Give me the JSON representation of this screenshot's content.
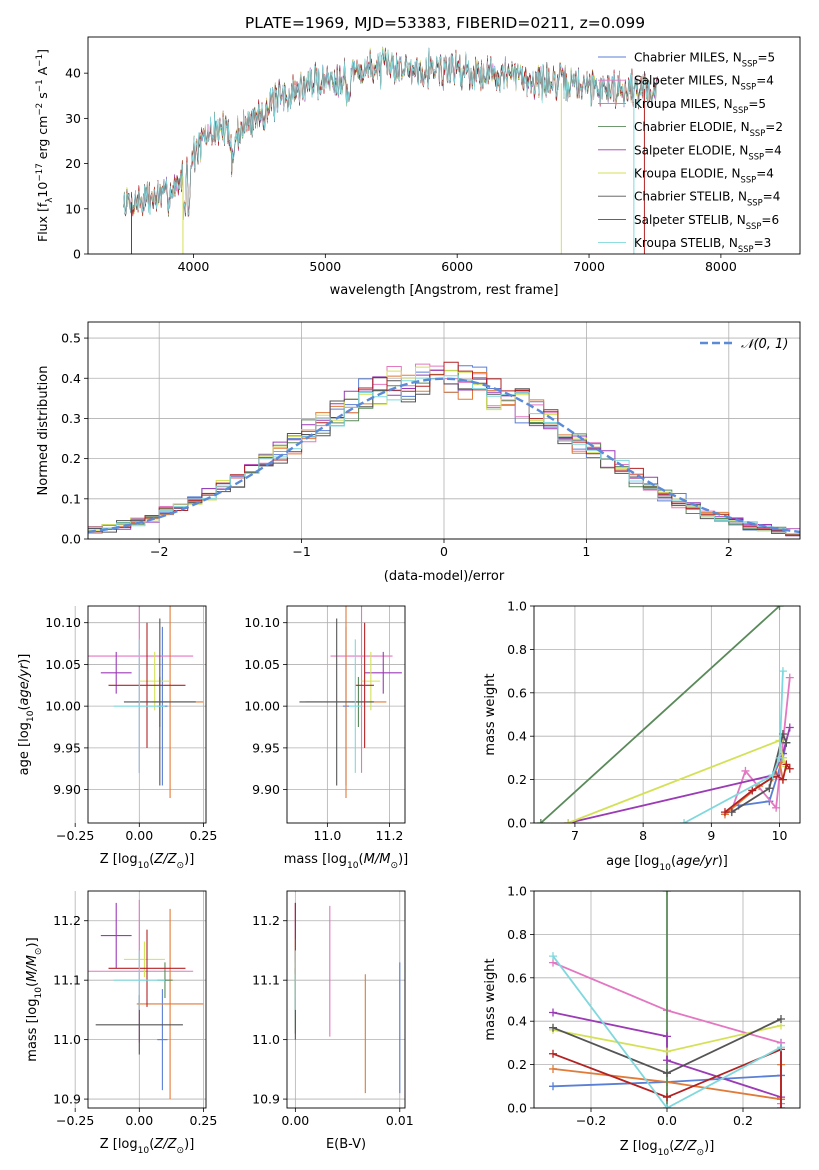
{
  "figure": {
    "title": "PLATE=1969, MJD=53383, FIBERID=0211, z=0.099"
  },
  "colors": {
    "model_palette": [
      "#5a7fd6",
      "#e377c2",
      "#e07b39",
      "#5a8a5a",
      "#9b3bb5",
      "#d4e157",
      "#555555",
      "#b22222",
      "#7fd8dd"
    ],
    "gaussian": "#5b8bd8",
    "grid": "#b0b0b0"
  },
  "chart_data": [
    {
      "id": "spectrum",
      "type": "line",
      "xlabel": "wavelength [Angstrom, rest frame]",
      "ylabel_main": "Flux [f",
      "ylabel_sub": "λ",
      "ylabel_rest": "10",
      "ylabel_sup1": "−17",
      "ylabel_tail": " erg cm",
      "ylabel_sup2": "−2",
      "ylabel_tail2": " s",
      "ylabel_sup3": "−1",
      "ylabel_tail3": " A",
      "ylabel_sup4": "−1",
      "ylabel_end": "]",
      "xlim": [
        3200,
        8600
      ],
      "ylim": [
        0,
        48
      ],
      "xticks": [
        "4000",
        "5000",
        "6000",
        "7000",
        "8000"
      ],
      "yticks": [
        "0",
        "10",
        "20",
        "30",
        "40"
      ],
      "continuum": {
        "x": [
          3470,
          3600,
          3800,
          3900,
          4000,
          4100,
          4200,
          4300,
          4500,
          4700,
          4900,
          5100,
          5300,
          5500,
          5700,
          5900,
          6100,
          6300,
          6500,
          6700,
          6900,
          7100,
          7300,
          7500
        ],
        "y": [
          11,
          12,
          13,
          16,
          22,
          26,
          28,
          26,
          31,
          35,
          38,
          39,
          41,
          41.5,
          41,
          41.5,
          40.5,
          40,
          39,
          38,
          37.5,
          37,
          36.5,
          36.5
        ]
      },
      "legend": [
        {
          "name": "Chabrier MILES",
          "n": "5"
        },
        {
          "name": "Salpeter MILES",
          "n": "4"
        },
        {
          "name": "Kroupa MILES",
          "n": "5"
        },
        {
          "name": "Chabrier ELODIE",
          "n": "2"
        },
        {
          "name": "Salpeter ELODIE",
          "n": "4"
        },
        {
          "name": "Kroupa ELODIE",
          "n": "4"
        },
        {
          "name": "Chabrier STELIB",
          "n": "4"
        },
        {
          "name": "Salpeter STELIB",
          "n": "6"
        },
        {
          "name": "Kroupa STELIB",
          "n": "3"
        }
      ],
      "legend_n_label": "N",
      "legend_n_sub": "SSP",
      "legend_placement": "right"
    },
    {
      "id": "residuals",
      "type": "histogram",
      "xlabel": "(data-model)/error",
      "ylabel": "Normed distribution",
      "xlim": [
        -2.5,
        2.5
      ],
      "ylim": [
        0,
        0.54
      ],
      "xticks": [
        "−2",
        "−1",
        "0",
        "1",
        "2"
      ],
      "yticks": [
        "0.0",
        "0.1",
        "0.2",
        "0.3",
        "0.4",
        "0.5"
      ],
      "bin_width": 0.1,
      "grid": true,
      "legend": "𝒩(0, 1)",
      "legend_placement": "top-right"
    },
    {
      "id": "age_vs_Z",
      "type": "errorbar",
      "xlabel": "Z [log",
      "xlabel_sub": "10",
      "xlabel_rest": "(Z/Z",
      "xlabel_sub2": "⊙",
      "xlabel_end": ")]",
      "ylabel": "age  [log",
      "ylabel_sub": "10",
      "ylabel_rest": "(age/yr)]",
      "xlim": [
        -0.2,
        0.26
      ],
      "ylim": [
        9.86,
        10.12
      ],
      "xticks": [
        "−0.25",
        "0.00",
        "0.25"
      ],
      "yticks": [
        "9.90",
        "9.95",
        "10.00",
        "10.05",
        "10.10"
      ],
      "points": [
        {
          "x": 0.09,
          "y": 10.0,
          "xerr": 0.02,
          "yerr": 0.095
        },
        {
          "x": 0.0,
          "y": 10.06,
          "xerr": 0.21,
          "yerr": 0.14
        },
        {
          "x": 0.12,
          "y": 10.005,
          "xerr": 0.13,
          "yerr": 0.115
        },
        {
          "x": 0.08,
          "y": 10.005,
          "xerr": 0.03,
          "yerr": 0.03
        },
        {
          "x": -0.09,
          "y": 10.04,
          "xerr": 0.06,
          "yerr": 0.025
        },
        {
          "x": 0.06,
          "y": 10.03,
          "xerr": 0.06,
          "yerr": 0.035
        },
        {
          "x": 0.08,
          "y": 10.005,
          "xerr": 0.14,
          "yerr": 0.1
        },
        {
          "x": 0.03,
          "y": 10.025,
          "xerr": 0.15,
          "yerr": 0.075
        },
        {
          "x": 0.0,
          "y": 10.0,
          "xerr": 0.1,
          "yerr": 0.08
        }
      ]
    },
    {
      "id": "age_vs_mass",
      "type": "errorbar",
      "xlabel": "mass [log",
      "xlabel_sub": "10",
      "xlabel_rest": "(M/M",
      "xlabel_sub2": "⊙",
      "xlabel_end": ")]",
      "xlim": [
        10.87,
        11.25
      ],
      "ylim": [
        9.86,
        10.12
      ],
      "xticks": [
        "11.0",
        "11.2"
      ],
      "yticks": [
        "9.90",
        "9.95",
        "10.00",
        "10.05",
        "10.10"
      ],
      "points": [
        {
          "x": 11.06,
          "y": 10.0,
          "xerr": 0.01,
          "yerr": 0.095
        },
        {
          "x": 11.11,
          "y": 10.06,
          "xerr": 0.1,
          "yerr": 0.14
        },
        {
          "x": 11.06,
          "y": 10.005,
          "xerr": 0.13,
          "yerr": 0.115
        },
        {
          "x": 11.1,
          "y": 10.005,
          "xerr": 0.02,
          "yerr": 0.03
        },
        {
          "x": 11.18,
          "y": 10.04,
          "xerr": 0.06,
          "yerr": 0.025
        },
        {
          "x": 11.14,
          "y": 10.03,
          "xerr": 0.03,
          "yerr": 0.035
        },
        {
          "x": 11.03,
          "y": 10.005,
          "xerr": 0.12,
          "yerr": 0.1
        },
        {
          "x": 11.12,
          "y": 10.025,
          "xerr": 0.03,
          "yerr": 0.075
        },
        {
          "x": 11.09,
          "y": 10.0,
          "xerr": 0.02,
          "yerr": 0.08
        }
      ]
    },
    {
      "id": "weight_vs_age",
      "type": "line",
      "xlabel": "age  [log",
      "xlabel_sub": "10",
      "xlabel_rest": "(age/yr)]",
      "ylabel": "mass weight",
      "xlim": [
        6.4,
        10.3
      ],
      "ylim": [
        0,
        1
      ],
      "xticks": [
        "7",
        "8",
        "9",
        "10"
      ],
      "yticks": [
        "0.0",
        "0.2",
        "0.4",
        "0.6",
        "0.8",
        "1.0"
      ],
      "grid": true,
      "series": [
        {
          "x": [
            9.4,
            9.85,
            10.05,
            10.1
          ],
          "y": [
            0.08,
            0.1,
            0.3,
            0.37
          ]
        },
        {
          "x": [
            9.3,
            9.5,
            9.95,
            10.15
          ],
          "y": [
            0.06,
            0.24,
            0.07,
            0.67
          ]
        },
        {
          "x": [
            9.2,
            9.7,
            9.9,
            10.0,
            10.05
          ],
          "y": [
            0.04,
            0.17,
            0.21,
            0.28,
            0.2
          ]
        },
        {
          "x": [
            6.5,
            10.0
          ],
          "y": [
            0.0,
            1.0
          ]
        },
        {
          "x": [
            6.9,
            9.9,
            10.05,
            10.15
          ],
          "y": [
            0.0,
            0.22,
            0.32,
            0.44
          ]
        },
        {
          "x": [
            6.9,
            10.0,
            10.05,
            10.1
          ],
          "y": [
            0.0,
            0.38,
            0.3,
            0.26
          ]
        },
        {
          "x": [
            9.3,
            9.85,
            10.05,
            10.1
          ],
          "y": [
            0.05,
            0.16,
            0.41,
            0.37
          ]
        },
        {
          "x": [
            9.2,
            9.6,
            9.95,
            10.05,
            10.1,
            10.15
          ],
          "y": [
            0.05,
            0.15,
            0.22,
            0.2,
            0.27,
            0.25
          ]
        },
        {
          "x": [
            8.6,
            9.9,
            10.0,
            10.05
          ],
          "y": [
            0.0,
            0.22,
            0.3,
            0.7
          ]
        }
      ]
    },
    {
      "id": "mass_vs_Z",
      "type": "errorbar",
      "xlabel": "Z [log",
      "xlabel_sub": "10",
      "xlabel_rest": "(Z/Z",
      "xlabel_sub2": "⊙",
      "xlabel_end": ")]",
      "ylabel": "mass [log",
      "ylabel_sub": "10",
      "ylabel_rest": "(M/M",
      "ylabel_sub2": "⊙",
      "ylabel_end": ")]",
      "xlim": [
        -0.2,
        0.26
      ],
      "ylim": [
        10.885,
        11.25
      ],
      "xticks": [
        "−0.25",
        "0.00",
        "0.25"
      ],
      "yticks": [
        "10.9",
        "11.0",
        "11.1",
        "11.2"
      ],
      "points": [
        {
          "x": 0.09,
          "y": 11.0,
          "xerr": 0.02,
          "yerr": 0.085
        },
        {
          "x": 0.0,
          "y": 11.115,
          "xerr": 0.21,
          "yerr": 0.12
        },
        {
          "x": 0.12,
          "y": 11.06,
          "xerr": 0.13,
          "yerr": 0.16
        },
        {
          "x": 0.1,
          "y": 11.1,
          "xerr": 0.03,
          "yerr": 0.03
        },
        {
          "x": -0.09,
          "y": 11.175,
          "xerr": 0.06,
          "yerr": 0.055
        },
        {
          "x": 0.02,
          "y": 11.135,
          "xerr": 0.08,
          "yerr": 0.03
        },
        {
          "x": 0.0,
          "y": 11.025,
          "xerr": 0.17,
          "yerr": 0.05
        },
        {
          "x": 0.03,
          "y": 11.12,
          "xerr": 0.15,
          "yerr": 0.065
        },
        {
          "x": 0.0,
          "y": 11.1,
          "xerr": 0.1,
          "yerr": 0.05
        }
      ]
    },
    {
      "id": "mass_vs_ebv",
      "type": "errorbar",
      "xlabel": "E(B-V)",
      "xlim": [
        -0.0008,
        0.0105
      ],
      "ylim": [
        10.885,
        11.25
      ],
      "xticks": [
        "0.00",
        "0.01"
      ],
      "yticks": [
        "10.9",
        "11.0",
        "11.1",
        "11.2"
      ],
      "points": [
        {
          "x": 0.01,
          "y": 11.02,
          "xerr": 0,
          "yerr": 0.11
        },
        {
          "x": 0.0033,
          "y": 11.115,
          "xerr": 0,
          "yerr": 0.11
        },
        {
          "x": 0.0067,
          "y": 11.01,
          "xerr": 0,
          "yerr": 0.1
        },
        {
          "x": 0.0,
          "y": 11.08,
          "xerr": 0,
          "yerr": 0.07
        },
        {
          "x": 0.0,
          "y": 11.18,
          "xerr": 0,
          "yerr": 0.05
        },
        {
          "x": 0.0,
          "y": 11.12,
          "xerr": 0,
          "yerr": 0.05
        },
        {
          "x": 0.0,
          "y": 11.06,
          "xerr": 0,
          "yerr": 0.06
        },
        {
          "x": 0.0,
          "y": 11.17,
          "xerr": 0,
          "yerr": 0.06
        },
        {
          "x": 0.0,
          "y": 11.1,
          "xerr": 0,
          "yerr": 0.05
        }
      ]
    },
    {
      "id": "weight_vs_Z",
      "type": "line",
      "xlabel": "Z [log",
      "xlabel_sub": "10",
      "xlabel_rest": "(Z/Z",
      "xlabel_sub2": "⊙",
      "xlabel_end": ")]",
      "ylabel": "mass weight",
      "xlim": [
        -0.35,
        0.35
      ],
      "ylim": [
        0,
        1
      ],
      "xticks": [
        "−0.2",
        "0.0",
        "0.2"
      ],
      "yticks": [
        "0.0",
        "0.2",
        "0.4",
        "0.6",
        "0.8",
        "1.0"
      ],
      "grid": true,
      "series": [
        {
          "x": [
            -0.3,
            0.0,
            0.3,
            0.3
          ],
          "y": [
            0.1,
            0.12,
            0.15,
            0.3
          ]
        },
        {
          "x": [
            -0.3,
            0.0,
            0.3,
            0.3
          ],
          "y": [
            0.67,
            0.45,
            0.3,
            0.02
          ]
        },
        {
          "x": [
            -0.3,
            0.0,
            0.3,
            0.3
          ],
          "y": [
            0.18,
            0.12,
            0.04,
            0.2
          ]
        },
        {
          "x": [
            0.0,
            0.0
          ],
          "y": [
            0.0,
            1.0
          ]
        },
        {
          "x": [
            -0.3,
            0.0,
            0.0,
            0.3
          ],
          "y": [
            0.44,
            0.33,
            0.22,
            0.05
          ]
        },
        {
          "x": [
            -0.3,
            0.0,
            0.3
          ],
          "y": [
            0.36,
            0.26,
            0.38
          ]
        },
        {
          "x": [
            -0.3,
            0.0,
            0.3
          ],
          "y": [
            0.37,
            0.16,
            0.41
          ]
        },
        {
          "x": [
            -0.3,
            0.0,
            0.3,
            0.3
          ],
          "y": [
            0.25,
            0.05,
            0.27,
            0.0
          ]
        },
        {
          "x": [
            -0.3,
            0.0,
            0.3
          ],
          "y": [
            0.7,
            0.0,
            0.28
          ]
        }
      ]
    }
  ]
}
